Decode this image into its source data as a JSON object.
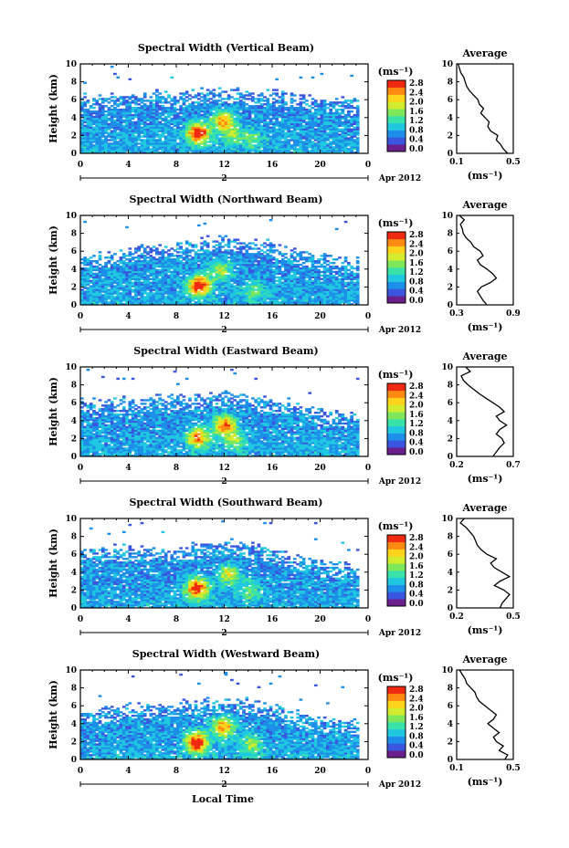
{
  "figure": {
    "x_axis_label": "Local Time",
    "date_label": "Apr 2012",
    "date_tick_label": "2",
    "y_axis_label": "Height (km)",
    "unit_label": "(ms⁻¹)",
    "average_title": "Average",
    "average_unit_label": "(ms⁻¹)"
  },
  "colorbar": {
    "tick_labels": [
      "2.8",
      "2.4",
      "2.0",
      "1.6",
      "1.2",
      "0.8",
      "0.4",
      "0.0"
    ],
    "range": [
      0.0,
      2.8
    ],
    "colors": [
      "#6b1f8c",
      "#3a55e0",
      "#1d8fe8",
      "#1fc8e0",
      "#38e2a8",
      "#7fe85a",
      "#d4ec2e",
      "#ffd21c",
      "#ff8a12",
      "#f02a10"
    ]
  },
  "chart_data": [
    {
      "type": "heatmap",
      "title": "Spectral Width (Vertical Beam)",
      "xlabel": "Local Time",
      "ylabel": "Height (km)",
      "x_ticks": [
        "0",
        "4",
        "8",
        "12",
        "16",
        "20",
        "0"
      ],
      "xlim": [
        0,
        24
      ],
      "y_ticks": [
        "0",
        "2",
        "4",
        "6",
        "8",
        "10"
      ],
      "ylim": [
        0,
        10
      ],
      "colorbar": [
        0.0,
        2.8
      ],
      "top_profile": [
        [
          0,
          6.3
        ],
        [
          2,
          6.1
        ],
        [
          4,
          6.4
        ],
        [
          6,
          6.6
        ],
        [
          8,
          6.5
        ],
        [
          10,
          6.8
        ],
        [
          12,
          6.9
        ],
        [
          14,
          6.7
        ],
        [
          16,
          6.6
        ],
        [
          18,
          6.4
        ],
        [
          20,
          6.0
        ],
        [
          22,
          5.8
        ],
        [
          23.2,
          5.6
        ]
      ],
      "hotspots": [
        {
          "x": 9.7,
          "y": 2.2,
          "v": 2.8
        },
        {
          "x": 11.8,
          "y": 3.6,
          "v": 2.2
        },
        {
          "x": 12.5,
          "y": 2.0,
          "v": 1.3
        },
        {
          "x": 14.2,
          "y": 1.5,
          "v": 1.2
        }
      ],
      "average": {
        "xlabel_ticks": [
          "0.1",
          "0.5"
        ],
        "xlim": [
          0.1,
          0.5
        ],
        "height": [
          0,
          0.5,
          1,
          1.5,
          2,
          2.5,
          3,
          3.5,
          4,
          4.5,
          5,
          5.5,
          6,
          6.5,
          7,
          7.5,
          8,
          8.5,
          9,
          9.5,
          10
        ],
        "values": [
          0.46,
          0.43,
          0.41,
          0.38,
          0.39,
          0.34,
          0.32,
          0.33,
          0.3,
          0.27,
          0.29,
          0.26,
          0.25,
          0.22,
          0.19,
          0.17,
          0.16,
          0.15,
          0.13,
          0.12,
          0.11
        ]
      }
    },
    {
      "type": "heatmap",
      "title": "Spectral Width (Northward Beam)",
      "xlabel": "Local Time",
      "ylabel": "Height (km)",
      "x_ticks": [
        "0",
        "4",
        "8",
        "12",
        "16",
        "20",
        "0"
      ],
      "xlim": [
        0,
        24
      ],
      "y_ticks": [
        "0",
        "2",
        "4",
        "6",
        "8",
        "10"
      ],
      "ylim": [
        0,
        10
      ],
      "colorbar": [
        0.0,
        2.8
      ],
      "top_profile": [
        [
          0,
          5.3
        ],
        [
          2,
          5.5
        ],
        [
          4,
          6.0
        ],
        [
          6,
          6.4
        ],
        [
          8,
          6.6
        ],
        [
          10,
          7.2
        ],
        [
          12,
          7.4
        ],
        [
          14,
          7.0
        ],
        [
          16,
          6.6
        ],
        [
          18,
          5.8
        ],
        [
          20,
          5.2
        ],
        [
          22,
          5.0
        ],
        [
          23.2,
          4.8
        ]
      ],
      "hotspots": [
        {
          "x": 9.8,
          "y": 2.1,
          "v": 2.8
        },
        {
          "x": 11.6,
          "y": 3.8,
          "v": 1.6
        },
        {
          "x": 14.4,
          "y": 1.4,
          "v": 1.2
        }
      ],
      "average": {
        "xlabel_ticks": [
          "0.3",
          "0.9"
        ],
        "xlim": [
          0.3,
          0.9
        ],
        "height": [
          0,
          0.5,
          1,
          1.5,
          2,
          2.5,
          3,
          3.5,
          4,
          4.5,
          5,
          5.5,
          6,
          6.5,
          7,
          7.5,
          8,
          8.5,
          9,
          9.5,
          10
        ],
        "values": [
          0.62,
          0.58,
          0.55,
          0.52,
          0.56,
          0.66,
          0.72,
          0.68,
          0.62,
          0.55,
          0.52,
          0.58,
          0.55,
          0.48,
          0.45,
          0.4,
          0.37,
          0.36,
          0.34,
          0.38,
          0.33
        ]
      }
    },
    {
      "type": "heatmap",
      "title": "Spectral Width (Eastward Beam)",
      "xlabel": "Local Time",
      "ylabel": "Height (km)",
      "x_ticks": [
        "0",
        "4",
        "8",
        "12",
        "16",
        "20",
        "0"
      ],
      "xlim": [
        0,
        24
      ],
      "y_ticks": [
        "0",
        "2",
        "4",
        "6",
        "8",
        "10"
      ],
      "ylim": [
        0,
        10
      ],
      "colorbar": [
        0.0,
        2.8
      ],
      "top_profile": [
        [
          0,
          6.1
        ],
        [
          2,
          6.0
        ],
        [
          4,
          6.2
        ],
        [
          6,
          6.3
        ],
        [
          8,
          6.4
        ],
        [
          10,
          6.6
        ],
        [
          12,
          6.8
        ],
        [
          14,
          6.5
        ],
        [
          16,
          6.2
        ],
        [
          18,
          5.9
        ],
        [
          20,
          4.8
        ],
        [
          22,
          4.6
        ],
        [
          23.2,
          4.5
        ]
      ],
      "hotspots": [
        {
          "x": 9.7,
          "y": 2.0,
          "v": 2.2
        },
        {
          "x": 11.9,
          "y": 3.4,
          "v": 2.4
        },
        {
          "x": 12.8,
          "y": 1.6,
          "v": 1.4
        }
      ],
      "average": {
        "xlabel_ticks": [
          "0.2",
          "0.7"
        ],
        "xlim": [
          0.2,
          0.7
        ],
        "height": [
          0,
          0.5,
          1,
          1.5,
          2,
          2.5,
          3,
          3.5,
          4,
          4.5,
          5,
          5.5,
          6,
          6.5,
          7,
          7.5,
          8,
          8.5,
          9,
          9.5,
          10
        ],
        "values": [
          0.52,
          0.55,
          0.58,
          0.62,
          0.6,
          0.55,
          0.58,
          0.64,
          0.58,
          0.55,
          0.62,
          0.58,
          0.52,
          0.46,
          0.4,
          0.35,
          0.3,
          0.26,
          0.24,
          0.32,
          0.28
        ]
      }
    },
    {
      "type": "heatmap",
      "title": "Spectral Width (Southward Beam)",
      "xlabel": "Local Time",
      "ylabel": "Height (km)",
      "x_ticks": [
        "0",
        "4",
        "8",
        "12",
        "16",
        "20",
        "0"
      ],
      "xlim": [
        0,
        24
      ],
      "y_ticks": [
        "0",
        "2",
        "4",
        "6",
        "8",
        "10"
      ],
      "ylim": [
        0,
        10
      ],
      "colorbar": [
        0.0,
        2.8
      ],
      "top_profile": [
        [
          0,
          6.3
        ],
        [
          2,
          6.5
        ],
        [
          4,
          6.6
        ],
        [
          6,
          6.4
        ],
        [
          8,
          6.5
        ],
        [
          10,
          6.8
        ],
        [
          12,
          7.2
        ],
        [
          14,
          6.9
        ],
        [
          16,
          6.4
        ],
        [
          18,
          5.6
        ],
        [
          20,
          4.8
        ],
        [
          22,
          4.6
        ],
        [
          23.2,
          4.4
        ]
      ],
      "hotspots": [
        {
          "x": 9.6,
          "y": 2.1,
          "v": 2.6
        },
        {
          "x": 12.3,
          "y": 3.7,
          "v": 1.8
        },
        {
          "x": 14.0,
          "y": 1.8,
          "v": 1.2
        }
      ],
      "average": {
        "xlabel_ticks": [
          "0.2",
          "0.5"
        ],
        "xlim": [
          0.2,
          0.5
        ],
        "height": [
          0,
          0.5,
          1,
          1.5,
          2,
          2.5,
          3,
          3.5,
          4,
          4.5,
          5,
          5.5,
          6,
          6.5,
          7,
          7.5,
          8,
          8.5,
          9,
          9.5,
          10
        ],
        "values": [
          0.43,
          0.44,
          0.46,
          0.48,
          0.45,
          0.4,
          0.43,
          0.48,
          0.44,
          0.4,
          0.38,
          0.41,
          0.36,
          0.33,
          0.31,
          0.3,
          0.29,
          0.27,
          0.25,
          0.22,
          0.24
        ]
      }
    },
    {
      "type": "heatmap",
      "title": "Spectral Width (Westward Beam)",
      "xlabel": "Local Time",
      "ylabel": "Height (km)",
      "x_ticks": [
        "0",
        "4",
        "8",
        "12",
        "16",
        "20",
        "0"
      ],
      "xlim": [
        0,
        24
      ],
      "y_ticks": [
        "0",
        "2",
        "4",
        "6",
        "8",
        "10"
      ],
      "ylim": [
        0,
        10
      ],
      "colorbar": [
        0.0,
        2.8
      ],
      "top_profile": [
        [
          0,
          5.6
        ],
        [
          2,
          5.4
        ],
        [
          4,
          5.9
        ],
        [
          6,
          6.0
        ],
        [
          8,
          6.1
        ],
        [
          10,
          6.4
        ],
        [
          12,
          6.5
        ],
        [
          14,
          6.3
        ],
        [
          16,
          5.8
        ],
        [
          18,
          5.0
        ],
        [
          20,
          4.4
        ],
        [
          22,
          4.2
        ],
        [
          23.2,
          4.0
        ]
      ],
      "hotspots": [
        {
          "x": 9.6,
          "y": 1.8,
          "v": 2.8
        },
        {
          "x": 11.8,
          "y": 3.6,
          "v": 2.2
        },
        {
          "x": 14.1,
          "y": 1.6,
          "v": 1.4
        }
      ],
      "average": {
        "xlabel_ticks": [
          "0.1",
          "0.5"
        ],
        "xlim": [
          0.1,
          0.5
        ],
        "height": [
          0,
          0.5,
          1,
          1.5,
          2,
          2.5,
          3,
          3.5,
          4,
          4.5,
          5,
          5.5,
          6,
          6.5,
          7,
          7.5,
          8,
          8.5,
          9,
          9.5,
          10
        ],
        "values": [
          0.44,
          0.46,
          0.4,
          0.43,
          0.38,
          0.36,
          0.4,
          0.36,
          0.32,
          0.36,
          0.38,
          0.34,
          0.3,
          0.26,
          0.24,
          0.23,
          0.2,
          0.17,
          0.16,
          0.14,
          0.12
        ]
      }
    }
  ]
}
